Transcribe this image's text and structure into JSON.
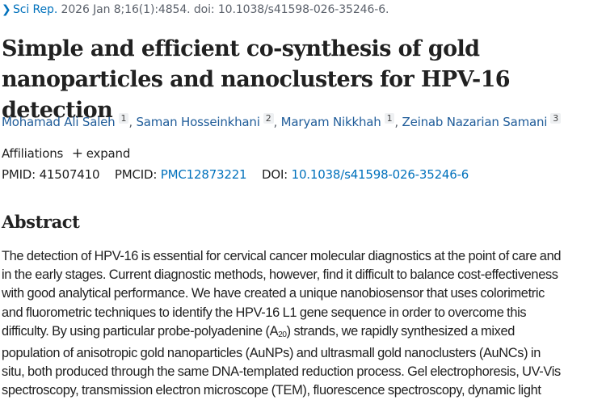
{
  "citation": {
    "journal": "Sci Rep.",
    "details": " 2026 Jan 8;16(1):4854. doi: 10.1038/s41598-026-35246-6."
  },
  "title": "Simple and efficient co-synthesis of gold nanoparticles and nanoclusters for HPV-16 detection",
  "authors": [
    {
      "name": "Mohamad Ali Saleh",
      "affiliation": "1"
    },
    {
      "name": "Saman Hosseinkhani",
      "affiliation": "2"
    },
    {
      "name": "Maryam Nikkhah",
      "affiliation": "1"
    },
    {
      "name": "Zeinab Nazarian Samani",
      "affiliation": "3"
    }
  ],
  "affiliations": {
    "label": "Affiliations",
    "expand_icon": "plus-icon",
    "expand_label": "expand"
  },
  "ids": {
    "pmid_label": "PMID:",
    "pmid": "41507410",
    "pmcid_label": "PMCID:",
    "pmcid": "PMC12873221",
    "doi_label": "DOI:",
    "doi": "10.1038/s41598-026-35246-6"
  },
  "abstract": {
    "heading": "Abstract",
    "lines": [
      "The detection of HPV-16 is essential for cervical cancer molecular diagnostics at the point of care and",
      "in the early stages. Current diagnostic methods, however, find it difficult to balance cost-effectiveness",
      "with good analytical performance. We have created a unique nanobiosensor that uses colorimetric",
      "and fluorometric techniques to identify the HPV-16 L1 gene sequence in order to overcome this",
      "difficulty. By using particular probe-polyadenine (A",
      "20",
      ") strands, we rapidly synthesized a mixed",
      "population of anisotropic gold nanoparticles (AuNPs) and ultrasmall gold nanoclusters (AuNCs) in",
      "situ, both produced through the same DNA-templated reduction process. Gel electrophoresis, UV-Vis",
      "spectroscopy, transmission electron microscope (TEM), fluorescence spectroscopy, dynamic light"
    ]
  },
  "colors": {
    "link": "#0071bc",
    "author_link": "#1f5c99",
    "text": "#212121",
    "muted": "#5b616b",
    "superscript_bg": "#eef0f2"
  }
}
